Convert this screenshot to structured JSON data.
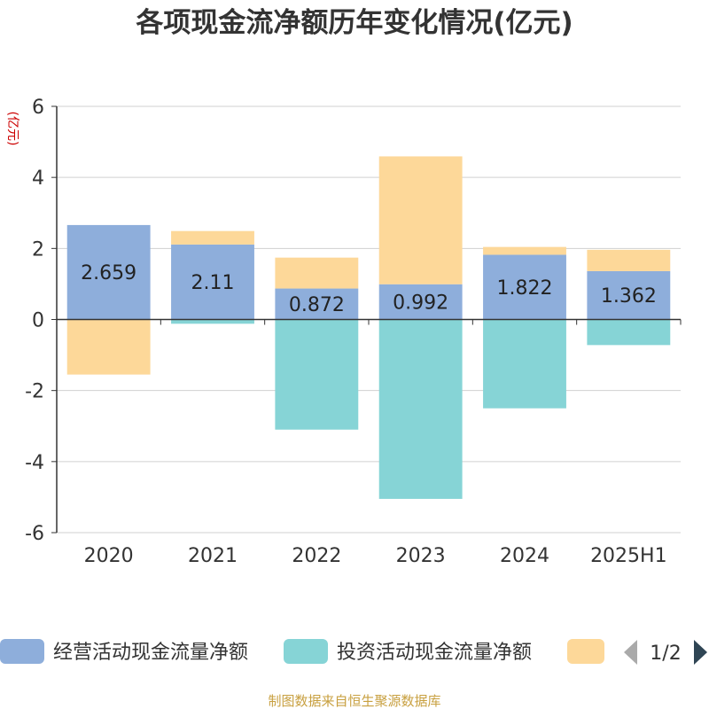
{
  "chart_data": {
    "type": "bar",
    "stacked": true,
    "title": "各项现金流净额历年变化情况(亿元)",
    "ylabel": "(亿元)",
    "categories": [
      "2020",
      "2021",
      "2022",
      "2023",
      "2024",
      "2025H1"
    ],
    "ylim": [
      -6,
      6
    ],
    "yticks": [
      6,
      4,
      2,
      0,
      -2,
      -4,
      -6
    ],
    "grid": true,
    "legend_position": "bottom",
    "series": [
      {
        "name": "经营活动现金流量净额",
        "color": "#8eaedb",
        "values": [
          2.659,
          2.11,
          0.872,
          0.992,
          1.822,
          1.362
        ],
        "show_labels": true
      },
      {
        "name": "投资活动现金流量净额",
        "color": "#86d4d6",
        "values": [
          0,
          -0.12,
          -3.1,
          -5.05,
          -2.5,
          -0.72
        ],
        "show_labels": false
      },
      {
        "name": "",
        "color": "#fdd899",
        "values": [
          -1.55,
          0.38,
          0.87,
          3.6,
          0.22,
          0.6
        ],
        "show_labels": false
      }
    ]
  },
  "legend": {
    "pager_text": "1/2"
  },
  "source": "制图数据来自恒生聚源数据库"
}
